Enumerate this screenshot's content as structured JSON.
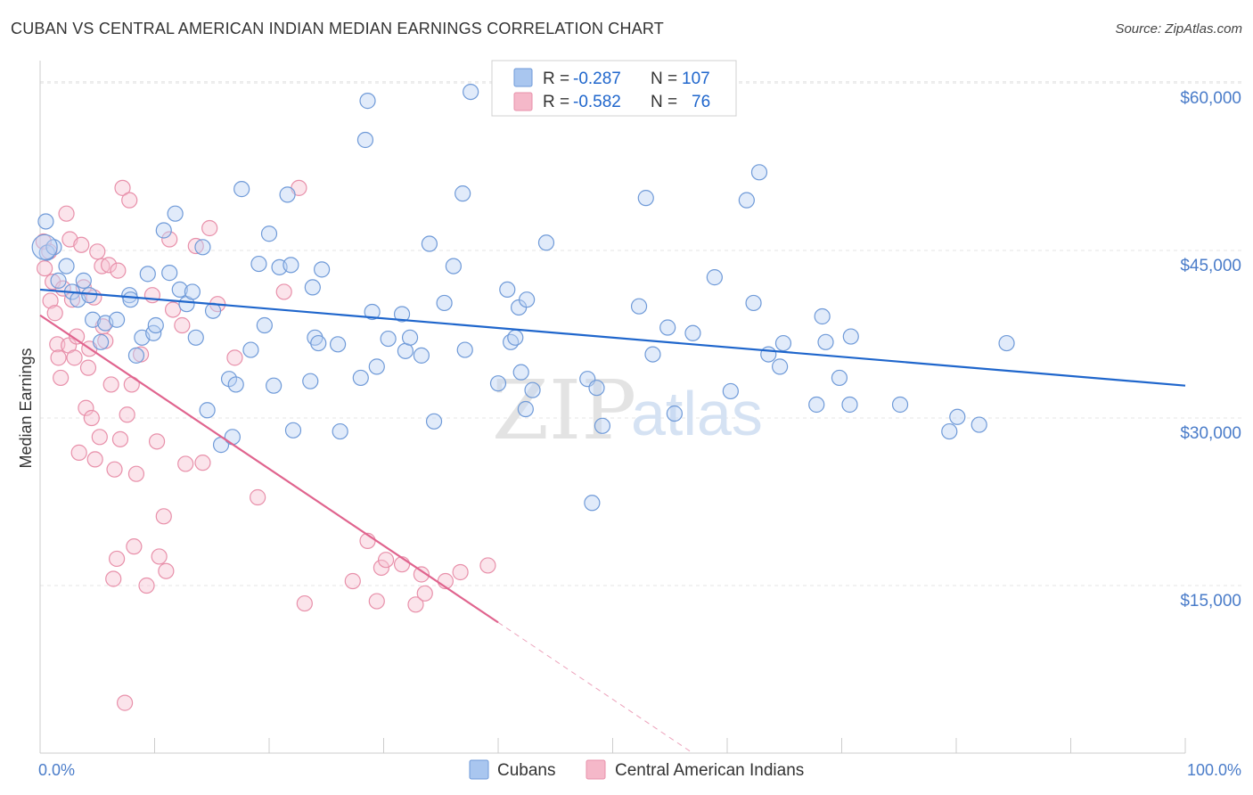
{
  "title": "CUBAN VS CENTRAL AMERICAN INDIAN MEDIAN EARNINGS CORRELATION CHART",
  "source": "Source: ZipAtlas.com",
  "watermark": {
    "part1": "ZIP",
    "part2": "atlas"
  },
  "legend": {
    "rows": [
      {
        "r_label": "R = ",
        "r_value": "-0.287",
        "n_label": "N = ",
        "n_value": "107",
        "color": "#a9c6ef"
      },
      {
        "r_label": "R = ",
        "r_value": "-0.582",
        "n_label": "N = ",
        "n_value": "76",
        "color": "#f5b8c9"
      }
    ]
  },
  "bottom_legend": [
    {
      "label": "Cubans",
      "color": "#a9c6ef"
    },
    {
      "label": "Central American Indians",
      "color": "#f5b8c9"
    }
  ],
  "colors": {
    "blue": "#4a7cc9",
    "blue_line": "#1f66cc",
    "pink": "#e87da0",
    "pink_line": "#e0648e"
  },
  "chart_data": {
    "type": "scatter",
    "title": "CUBAN VS CENTRAL AMERICAN INDIAN MEDIAN EARNINGS CORRELATION CHART",
    "xlabel": "",
    "ylabel": "Median Earnings",
    "xlim": [
      0,
      100
    ],
    "ylim": [
      0,
      62000
    ],
    "x_tick_labels": [
      "0.0%",
      "100.0%"
    ],
    "y_ticks": [
      15000,
      30000,
      45000,
      60000
    ],
    "y_tick_labels": [
      "$15,000",
      "$30,000",
      "$45,000",
      "$60,000"
    ],
    "grid": true,
    "series": [
      {
        "name": "Cubans",
        "points": [
          [
            0.5,
            47600
          ],
          [
            0.6,
            44800
          ],
          [
            1.2,
            45300
          ],
          [
            1.6,
            42300
          ],
          [
            2.3,
            43600
          ],
          [
            2.8,
            41300
          ],
          [
            3.3,
            40600
          ],
          [
            3.8,
            42300
          ],
          [
            4.3,
            41000
          ],
          [
            4.6,
            38800
          ],
          [
            5.3,
            36800
          ],
          [
            5.7,
            38500
          ],
          [
            6.7,
            38800
          ],
          [
            7.8,
            41000
          ],
          [
            7.9,
            40600
          ],
          [
            8.4,
            35600
          ],
          [
            8.9,
            37200
          ],
          [
            9.4,
            42900
          ],
          [
            9.9,
            37600
          ],
          [
            10.1,
            38300
          ],
          [
            10.8,
            46800
          ],
          [
            11.3,
            43000
          ],
          [
            11.8,
            48300
          ],
          [
            12.2,
            41500
          ],
          [
            12.8,
            40200
          ],
          [
            13.3,
            41300
          ],
          [
            13.6,
            37200
          ],
          [
            14.2,
            45300
          ],
          [
            14.6,
            30700
          ],
          [
            15.1,
            39600
          ],
          [
            15.8,
            27600
          ],
          [
            16.5,
            33500
          ],
          [
            16.8,
            28300
          ],
          [
            17.1,
            33000
          ],
          [
            17.6,
            50500
          ],
          [
            18.4,
            36100
          ],
          [
            19.1,
            43800
          ],
          [
            19.6,
            38300
          ],
          [
            20.0,
            46500
          ],
          [
            20.4,
            32900
          ],
          [
            20.9,
            43500
          ],
          [
            21.6,
            50000
          ],
          [
            21.9,
            43700
          ],
          [
            22.1,
            28900
          ],
          [
            23.6,
            33300
          ],
          [
            23.8,
            41700
          ],
          [
            24.0,
            37200
          ],
          [
            24.3,
            36700
          ],
          [
            24.6,
            43300
          ],
          [
            26.0,
            36600
          ],
          [
            26.2,
            28800
          ],
          [
            28.0,
            33600
          ],
          [
            28.4,
            54900
          ],
          [
            28.6,
            58400
          ],
          [
            29.0,
            39500
          ],
          [
            29.4,
            34600
          ],
          [
            30.4,
            37100
          ],
          [
            31.6,
            39300
          ],
          [
            31.9,
            36000
          ],
          [
            32.3,
            37200
          ],
          [
            33.3,
            35600
          ],
          [
            34.0,
            45600
          ],
          [
            34.4,
            29700
          ],
          [
            35.3,
            40300
          ],
          [
            36.1,
            43600
          ],
          [
            37.1,
            36100
          ],
          [
            37.6,
            59200
          ],
          [
            36.9,
            50100
          ],
          [
            40.0,
            33100
          ],
          [
            40.8,
            41500
          ],
          [
            41.1,
            36800
          ],
          [
            41.5,
            37200
          ],
          [
            41.8,
            39900
          ],
          [
            42.0,
            34100
          ],
          [
            42.4,
            30800
          ],
          [
            42.5,
            40600
          ],
          [
            43.0,
            32500
          ],
          [
            44.2,
            45700
          ],
          [
            47.8,
            33500
          ],
          [
            48.2,
            22400
          ],
          [
            48.6,
            32700
          ],
          [
            49.1,
            29300
          ],
          [
            52.3,
            40000
          ],
          [
            52.9,
            49700
          ],
          [
            53.5,
            35700
          ],
          [
            54.8,
            38100
          ],
          [
            55.4,
            30400
          ],
          [
            57.0,
            37600
          ],
          [
            58.9,
            42600
          ],
          [
            60.3,
            32400
          ],
          [
            61.7,
            49500
          ],
          [
            62.3,
            40300
          ],
          [
            62.8,
            52000
          ],
          [
            63.6,
            35700
          ],
          [
            64.6,
            34600
          ],
          [
            64.9,
            36700
          ],
          [
            67.8,
            31200
          ],
          [
            68.3,
            39100
          ],
          [
            68.6,
            36800
          ],
          [
            69.8,
            33600
          ],
          [
            70.7,
            31200
          ],
          [
            70.8,
            37300
          ],
          [
            75.1,
            31200
          ],
          [
            79.4,
            28800
          ],
          [
            80.1,
            30100
          ],
          [
            82.0,
            29400
          ],
          [
            84.4,
            36700
          ]
        ]
      },
      {
        "name": "Central American Indians",
        "points": [
          [
            0.3,
            45800
          ],
          [
            0.4,
            43400
          ],
          [
            0.8,
            44900
          ],
          [
            0.9,
            40500
          ],
          [
            1.1,
            42200
          ],
          [
            1.3,
            39400
          ],
          [
            1.5,
            36600
          ],
          [
            1.6,
            35400
          ],
          [
            1.8,
            33600
          ],
          [
            2.0,
            41600
          ],
          [
            2.3,
            48300
          ],
          [
            2.5,
            36500
          ],
          [
            2.6,
            46000
          ],
          [
            2.8,
            40600
          ],
          [
            3.0,
            35400
          ],
          [
            3.2,
            37300
          ],
          [
            3.4,
            26900
          ],
          [
            3.6,
            45500
          ],
          [
            3.8,
            41700
          ],
          [
            4.0,
            30900
          ],
          [
            4.2,
            34500
          ],
          [
            4.3,
            36200
          ],
          [
            4.5,
            30000
          ],
          [
            4.7,
            40800
          ],
          [
            4.8,
            26300
          ],
          [
            5.0,
            44900
          ],
          [
            5.2,
            28300
          ],
          [
            5.4,
            43600
          ],
          [
            5.5,
            38200
          ],
          [
            5.7,
            36900
          ],
          [
            6.0,
            43700
          ],
          [
            6.2,
            33000
          ],
          [
            6.4,
            15600
          ],
          [
            6.5,
            25400
          ],
          [
            6.7,
            17400
          ],
          [
            6.8,
            43200
          ],
          [
            7.0,
            28100
          ],
          [
            7.2,
            50600
          ],
          [
            7.4,
            4500
          ],
          [
            7.6,
            30300
          ],
          [
            7.8,
            49500
          ],
          [
            8.0,
            33000
          ],
          [
            8.2,
            18500
          ],
          [
            8.4,
            25000
          ],
          [
            8.8,
            35700
          ],
          [
            9.3,
            15000
          ],
          [
            9.8,
            41000
          ],
          [
            10.2,
            27900
          ],
          [
            10.4,
            17600
          ],
          [
            10.8,
            21200
          ],
          [
            11.0,
            16300
          ],
          [
            11.3,
            46000
          ],
          [
            11.6,
            39700
          ],
          [
            12.4,
            38300
          ],
          [
            12.7,
            25900
          ],
          [
            13.6,
            45400
          ],
          [
            14.2,
            26000
          ],
          [
            14.8,
            47000
          ],
          [
            15.5,
            40200
          ],
          [
            17.0,
            35400
          ],
          [
            19.0,
            22900
          ],
          [
            21.3,
            41300
          ],
          [
            22.6,
            50600
          ],
          [
            23.1,
            13400
          ],
          [
            27.3,
            15400
          ],
          [
            28.6,
            19000
          ],
          [
            29.4,
            13600
          ],
          [
            29.8,
            16600
          ],
          [
            30.2,
            17300
          ],
          [
            31.6,
            16900
          ],
          [
            32.8,
            13300
          ],
          [
            33.3,
            16000
          ],
          [
            33.6,
            14300
          ],
          [
            35.4,
            15400
          ],
          [
            36.7,
            16200
          ],
          [
            39.1,
            16800
          ]
        ]
      }
    ],
    "trendlines": [
      {
        "series": "Cubans",
        "x": [
          0,
          100
        ],
        "y": [
          41500,
          32900
        ]
      },
      {
        "series": "Central American Indians",
        "x": [
          0,
          40
        ],
        "y": [
          39200,
          11700
        ],
        "dashed_extension_to": [
          57,
          0
        ]
      }
    ]
  }
}
